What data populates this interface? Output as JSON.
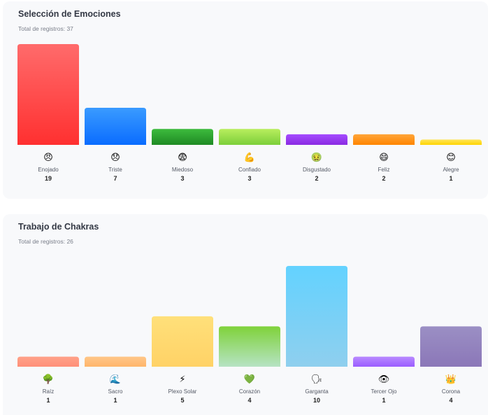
{
  "chart_data": [
    {
      "type": "bar",
      "title": "Selección de Emociones",
      "subtitle": "Total de registros: 37",
      "categories": [
        "Enojado",
        "Triste",
        "Miedoso",
        "Confiado",
        "Disgustado",
        "Feliz",
        "Alegre"
      ],
      "values": [
        19,
        7,
        3,
        3,
        2,
        2,
        1
      ],
      "icons": [
        "angry-face-icon",
        "sad-face-icon",
        "fearful-face-icon",
        "flexed-biceps-icon",
        "nauseated-face-icon",
        "grinning-face-icon",
        "smiling-face-icon"
      ],
      "glyphs": [
        "😠",
        "😞",
        "😨",
        "💪",
        "🤢",
        "😄",
        "😊"
      ],
      "colors": [
        [
          "#ff6b6b",
          "#ff3030"
        ],
        [
          "#3a9bff",
          "#0a6cff"
        ],
        [
          "#3dbb3d",
          "#1f8a24"
        ],
        [
          "#b8ee5e",
          "#7ccf3a"
        ],
        [
          "#a54bff",
          "#8a2be2"
        ],
        [
          "#ffa53a",
          "#ff8500"
        ],
        [
          "#ffe55a",
          "#ffd400"
        ]
      ],
      "ylim": [
        0,
        19
      ],
      "grid": false,
      "legend": "none"
    },
    {
      "type": "bar",
      "title": "Trabajo de Chakras",
      "subtitle": "Total de registros: 26",
      "categories": [
        "Raíz",
        "Sacro",
        "Plexo Solar",
        "Corazón",
        "Garganta",
        "Tercer Ojo",
        "Corona"
      ],
      "values": [
        1,
        1,
        5,
        4,
        10,
        1,
        4
      ],
      "icons": [
        "tree-icon",
        "wave-icon",
        "lightning-icon",
        "green-heart-icon",
        "speaking-head-icon",
        "eye-icon",
        "crown-icon"
      ],
      "glyphs": [
        "🌳",
        "🌊",
        "⚡",
        "💚",
        "🗣",
        "👁",
        "👑"
      ],
      "colors": [
        [
          "#ffa289",
          "#ff8f78"
        ],
        [
          "#ffc788",
          "#ffb56a"
        ],
        [
          "#ffe07a",
          "#ffd266"
        ],
        [
          "#7fd23a",
          "#b6e3c4"
        ],
        [
          "#63d2ff",
          "#8fcfee"
        ],
        [
          "#b98bff",
          "#9b5cff"
        ],
        [
          "#9b8fc4",
          "#8b77b8"
        ]
      ],
      "ylim": [
        0,
        10
      ],
      "grid": false,
      "legend": "none"
    }
  ]
}
